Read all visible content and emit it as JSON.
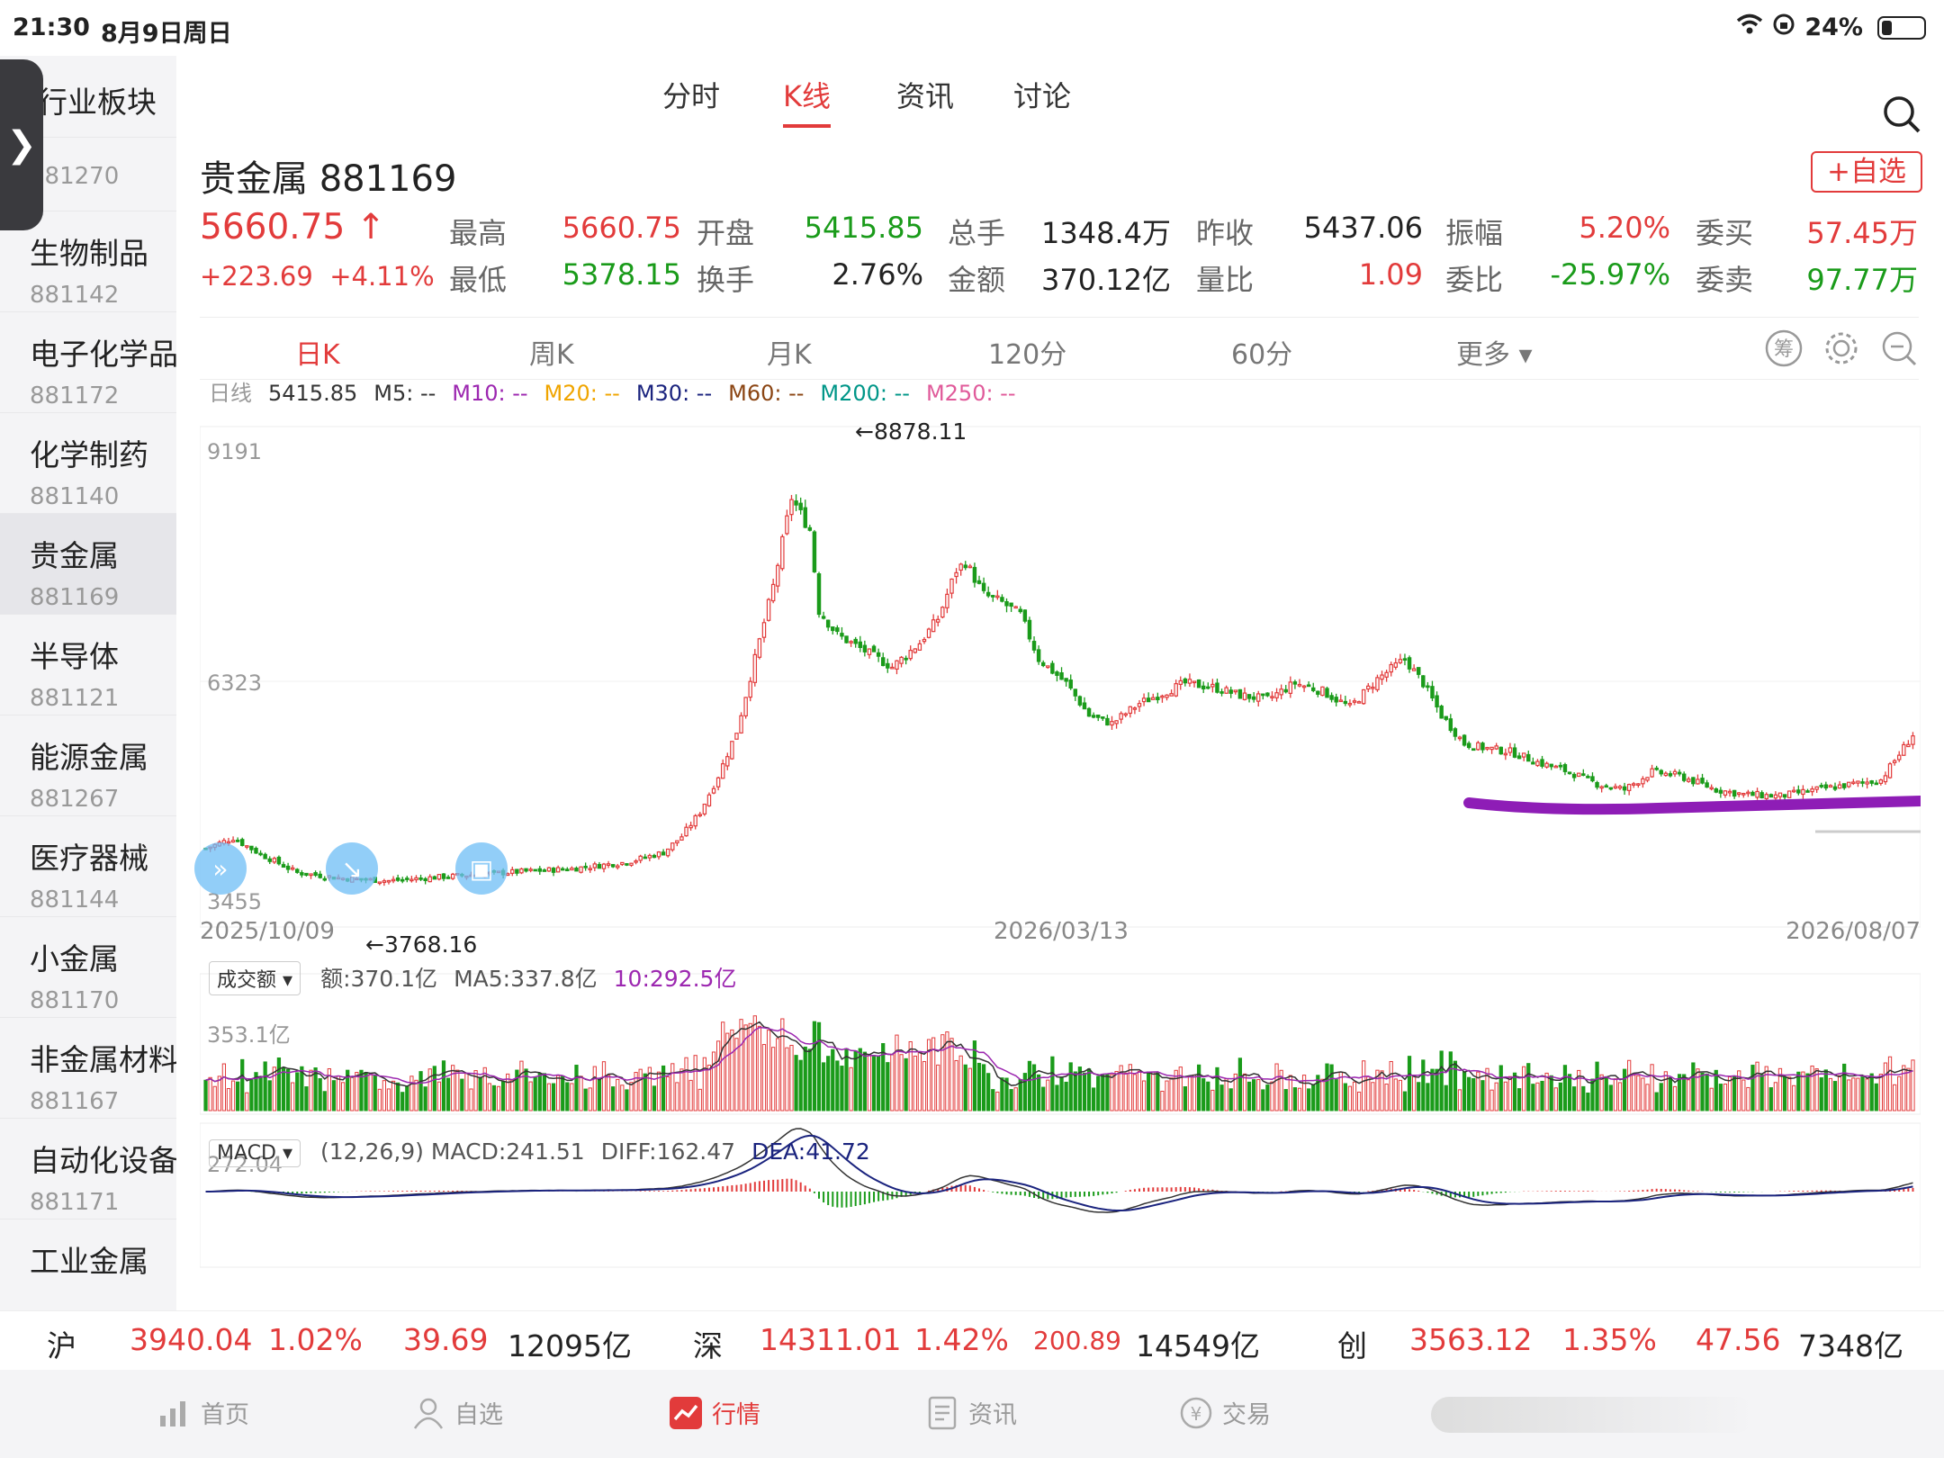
{
  "status": {
    "time": "21:30",
    "date": "8月9日周日",
    "battery": "24%",
    "battery_level": 0.24
  },
  "sidebar": {
    "header": "行业板块",
    "items": [
      {
        "name": "",
        "code": "881270"
      },
      {
        "name": "生物制品",
        "code": "881142"
      },
      {
        "name": "电子化学品",
        "code": "881172"
      },
      {
        "name": "化学制药",
        "code": "881140"
      },
      {
        "name": "贵金属",
        "code": "881169"
      },
      {
        "name": "半导体",
        "code": "881121"
      },
      {
        "name": "能源金属",
        "code": "881267"
      },
      {
        "name": "医疗器械",
        "code": "881144"
      },
      {
        "name": "小金属",
        "code": "881170"
      },
      {
        "name": "非金属材料",
        "code": "881167"
      },
      {
        "name": "自动化设备",
        "code": "881171"
      },
      {
        "name": "工业金属",
        "code": ""
      }
    ]
  },
  "tabs": [
    "分时",
    "K线",
    "资讯",
    "讨论"
  ],
  "title": "贵金属 881169",
  "fav_label": "+自选",
  "price": {
    "last": "5660.75",
    "arrow": "↑",
    "change": "+223.69",
    "change_pct": "+4.11%"
  },
  "quote": {
    "high_label": "最高",
    "high": "5660.75",
    "open_label": "开盘",
    "open": "5415.85",
    "vol_label": "总手",
    "vol": "1348.4万",
    "prev_label": "昨收",
    "prev": "5437.06",
    "amp_label": "振幅",
    "amp": "5.20%",
    "bid_label": "委买",
    "bid": "57.45万",
    "low_label": "最低",
    "low": "5378.15",
    "turn_label": "换手",
    "turn": "2.76%",
    "amt_label": "金额",
    "amt": "370.12亿",
    "vr_label": "量比",
    "vr": "1.09",
    "wb_label": "委比",
    "wb": "-25.97%",
    "ask_label": "委卖",
    "ask": "97.77万"
  },
  "periods": [
    "日K",
    "周K",
    "月K",
    "120分",
    "60分",
    "更多"
  ],
  "ma": {
    "label": "日线",
    "close": "5415.85",
    "m5": "M5: --",
    "m10": "M10: --",
    "m20": "M20: --",
    "m30": "M30: --",
    "m60": "M60: --",
    "m200": "M200: --",
    "m250": "M250: --"
  },
  "colors": {
    "up": "#e23b3b",
    "down": "#1a9b1a",
    "m10": "#9c27b0",
    "m20": "#f0a500",
    "m30": "#1a237e",
    "m60": "#8b4513",
    "m200": "#009688",
    "m250": "#e05a9a",
    "annotation": "#8e1db6"
  },
  "chart_data": {
    "type": "candlestick",
    "y_top_label": "9191",
    "y_mid_label": "6323",
    "y_low_label": "3455",
    "ylim": [
      3455,
      9191
    ],
    "high_marker": "←8878.11",
    "low_marker": "←3768.16",
    "x_labels": [
      "2025/10/09",
      "2026/03/13",
      "2026/08/07"
    ],
    "close_path": [
      [
        0,
        4250
      ],
      [
        6,
        4380
      ],
      [
        12,
        4180
      ],
      [
        20,
        3950
      ],
      [
        30,
        3880
      ],
      [
        40,
        3850
      ],
      [
        52,
        3900
      ],
      [
        65,
        3950
      ],
      [
        80,
        4000
      ],
      [
        92,
        4080
      ],
      [
        100,
        4200
      ],
      [
        104,
        4400
      ],
      [
        108,
        4700
      ],
      [
        112,
        5150
      ],
      [
        116,
        5700
      ],
      [
        120,
        6600
      ],
      [
        124,
        7500
      ],
      [
        128,
        8600
      ],
      [
        132,
        8200
      ],
      [
        134,
        7200
      ],
      [
        138,
        6900
      ],
      [
        144,
        6700
      ],
      [
        150,
        6500
      ],
      [
        156,
        6800
      ],
      [
        160,
        7100
      ],
      [
        164,
        7700
      ],
      [
        166,
        7800
      ],
      [
        170,
        7400
      ],
      [
        174,
        7300
      ],
      [
        178,
        7150
      ],
      [
        182,
        6600
      ],
      [
        188,
        6300
      ],
      [
        193,
        5900
      ],
      [
        198,
        5800
      ],
      [
        204,
        6050
      ],
      [
        210,
        6200
      ],
      [
        214,
        6300
      ],
      [
        220,
        6250
      ],
      [
        226,
        6150
      ],
      [
        232,
        6100
      ],
      [
        238,
        6300
      ],
      [
        244,
        6200
      ],
      [
        250,
        6000
      ],
      [
        256,
        6350
      ],
      [
        262,
        6600
      ],
      [
        266,
        6300
      ],
      [
        270,
        5900
      ],
      [
        275,
        5550
      ],
      [
        279,
        5500
      ],
      [
        285,
        5450
      ],
      [
        292,
        5300
      ],
      [
        298,
        5200
      ],
      [
        304,
        5050
      ],
      [
        310,
        4980
      ],
      [
        316,
        5200
      ],
      [
        322,
        5150
      ],
      [
        330,
        4980
      ],
      [
        336,
        4920
      ],
      [
        344,
        4900
      ],
      [
        352,
        4980
      ],
      [
        360,
        5050
      ],
      [
        366,
        5100
      ],
      [
        370,
        5420
      ],
      [
        373,
        5660
      ]
    ],
    "volume": {
      "label": "成交额",
      "amt": "额:370.1亿",
      "ma5": "MA5:337.8亿",
      "ma10": "10:292.5亿",
      "y_label": "353.1亿"
    },
    "macd": {
      "label": "MACD",
      "params": "(12,26,9) MACD:241.51",
      "diff": "DIFF:162.47",
      "dea": "DEA:41.72",
      "y_label": "272.04"
    }
  },
  "index_bar": {
    "sh_label": "沪",
    "sh": "3940.04",
    "sh_pct": "1.02%",
    "sh_chg": "39.69",
    "sh_amt": "12095亿",
    "sz_label": "深",
    "sz": "14311.01",
    "sz_pct": "1.42%",
    "sz_chg": "200.89",
    "sz_amt": "14549亿",
    "cy_label": "创",
    "cy": "3563.12",
    "cy_pct": "1.35%",
    "cy_chg": "47.56",
    "cy_amt": "7348亿"
  },
  "nav": [
    "首页",
    "自选",
    "行情",
    "资讯",
    "交易"
  ]
}
